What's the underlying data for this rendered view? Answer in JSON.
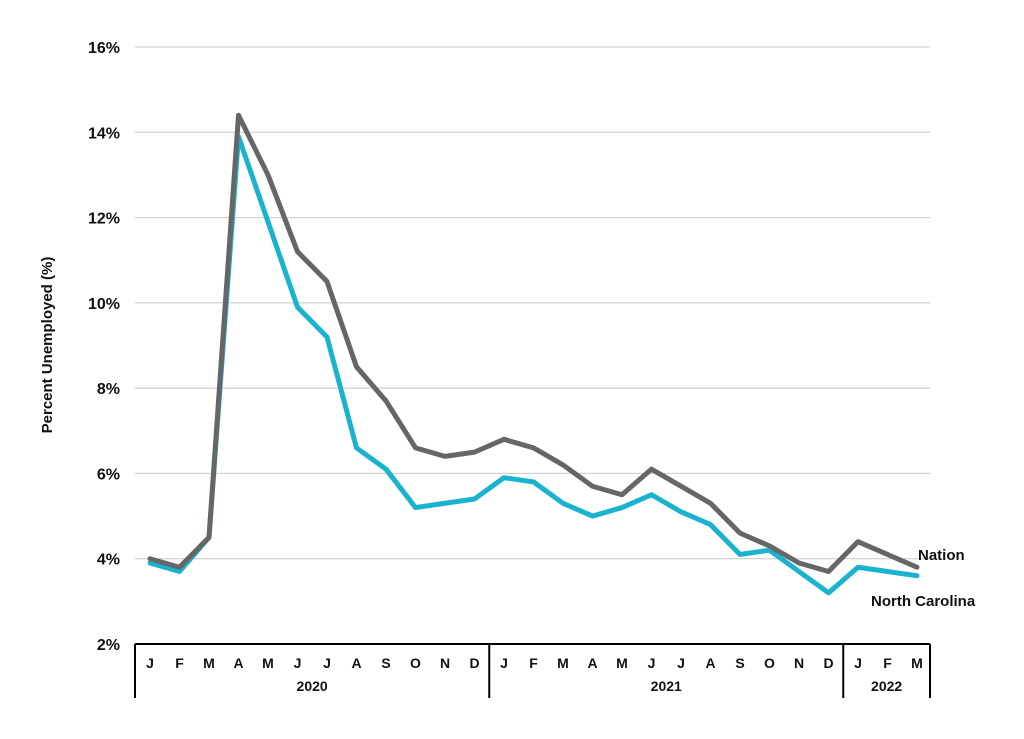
{
  "chart_data": {
    "type": "line",
    "title": "",
    "xlabel": "",
    "ylabel": "Percent Unemployed (%)",
    "ylim": [
      2,
      16
    ],
    "yticks": [
      2,
      4,
      6,
      8,
      10,
      12,
      14,
      16
    ],
    "ytick_labels": [
      "2%",
      "4%",
      "6%",
      "8%",
      "10%",
      "12%",
      "14%",
      "16%"
    ],
    "grid": "horizontal",
    "categories": [
      "J",
      "F",
      "M",
      "A",
      "M",
      "J",
      "J",
      "A",
      "S",
      "O",
      "N",
      "D",
      "J",
      "F",
      "M",
      "A",
      "M",
      "J",
      "J",
      "A",
      "S",
      "O",
      "N",
      "D",
      "J",
      "F",
      "M"
    ],
    "year_groups": [
      {
        "label": "2020",
        "count": 12
      },
      {
        "label": "2021",
        "count": 12
      },
      {
        "label": "2022",
        "count": 3
      }
    ],
    "series": [
      {
        "name": "Nation",
        "color": "#666666",
        "label_placement": "end-above",
        "values": [
          4.0,
          3.8,
          4.5,
          14.4,
          13.0,
          11.2,
          10.5,
          8.5,
          7.7,
          6.6,
          6.4,
          6.5,
          6.8,
          6.6,
          6.2,
          5.7,
          5.5,
          6.1,
          5.7,
          5.3,
          4.6,
          4.3,
          3.9,
          3.7,
          4.4,
          4.1,
          3.8
        ]
      },
      {
        "name": "North Carolina",
        "color": "#1ab3cf",
        "label_placement": "end-below",
        "values": [
          3.9,
          3.7,
          4.5,
          13.9,
          11.9,
          9.9,
          9.2,
          6.6,
          6.1,
          5.2,
          5.3,
          5.4,
          5.9,
          5.8,
          5.3,
          5.0,
          5.2,
          5.5,
          5.1,
          4.8,
          4.1,
          4.2,
          3.7,
          3.2,
          3.8,
          3.7,
          3.6
        ]
      }
    ]
  }
}
